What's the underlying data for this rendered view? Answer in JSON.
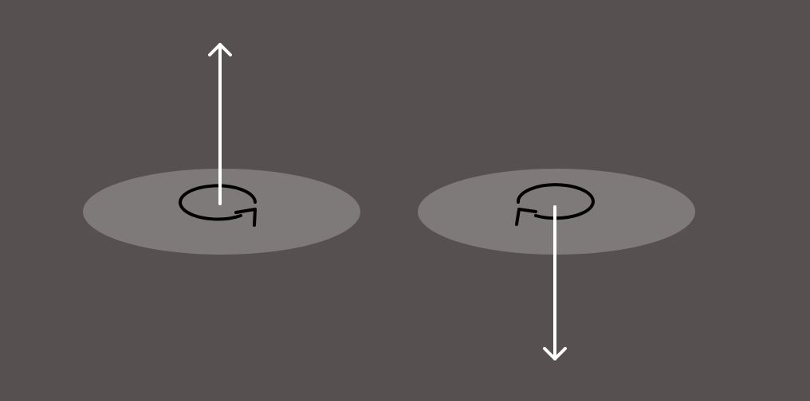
{
  "diagram": {
    "background_color": "#565050",
    "disk_color": "#7e7a79",
    "rotation_stroke_color": "#000000",
    "vector_color": "#ffffff",
    "disks": [
      {
        "id": "left",
        "rotation": "counterclockwise",
        "vector": "up"
      },
      {
        "id": "right",
        "rotation": "clockwise",
        "vector": "down"
      }
    ]
  }
}
